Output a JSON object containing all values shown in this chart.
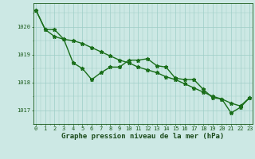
{
  "x": [
    0,
    1,
    2,
    3,
    4,
    5,
    6,
    7,
    8,
    9,
    10,
    11,
    12,
    13,
    14,
    15,
    16,
    17,
    18,
    19,
    20,
    21,
    22,
    23
  ],
  "series1": [
    1020.6,
    1019.9,
    1019.9,
    1019.55,
    1018.7,
    1018.5,
    1018.1,
    1018.35,
    1018.55,
    1018.55,
    1018.8,
    1018.8,
    1018.85,
    1018.6,
    1018.55,
    1018.15,
    1018.1,
    1018.1,
    1017.75,
    1017.45,
    1017.4,
    1016.9,
    1017.1,
    1017.45
  ],
  "series2": [
    1020.6,
    1019.9,
    1019.65,
    1019.55,
    1019.5,
    1019.4,
    1019.25,
    1019.1,
    1018.95,
    1018.8,
    1018.7,
    1018.55,
    1018.45,
    1018.35,
    1018.2,
    1018.1,
    1017.95,
    1017.8,
    1017.65,
    1017.5,
    1017.4,
    1017.25,
    1017.15,
    1017.45
  ],
  "ylim": [
    1016.5,
    1020.85
  ],
  "yticks": [
    1017,
    1018,
    1019,
    1020
  ],
  "xticks": [
    0,
    1,
    2,
    3,
    4,
    5,
    6,
    7,
    8,
    9,
    10,
    11,
    12,
    13,
    14,
    15,
    16,
    17,
    18,
    19,
    20,
    21,
    22,
    23
  ],
  "xlabel": "Graphe pression niveau de la mer (hPa)",
  "line_color": "#1a6e1a",
  "bg_color": "#cce8e4",
  "grid_color": "#9ecdc7",
  "axis_color": "#1a5a1a",
  "tick_label_color": "#1a4a1a",
  "xlabel_color": "#1a4a1a",
  "marker": "*",
  "markersize": 3.5,
  "linewidth": 1.0,
  "xlabel_fontsize": 6.5,
  "tick_fontsize": 5.0
}
